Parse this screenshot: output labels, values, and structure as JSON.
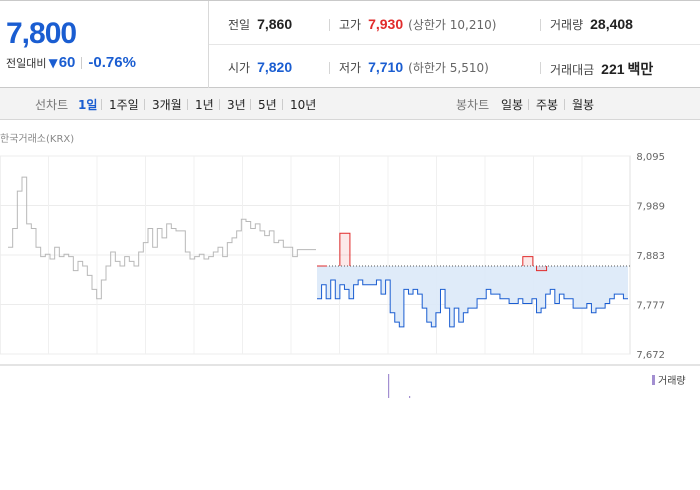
{
  "quote": {
    "price": "7,800",
    "diff_label": "전일대비",
    "diff_arrow": "▼",
    "diff_value": "60",
    "diff_rate": "-0.76%",
    "prev_close": {
      "label": "전일",
      "value": "7,860"
    },
    "high": {
      "label": "고가",
      "value": "7,930",
      "sub": "(상한가 10,210)"
    },
    "volume": {
      "label": "거래량",
      "value": "28,408"
    },
    "open": {
      "label": "시가",
      "value": "7,820"
    },
    "low": {
      "label": "저가",
      "value": "7,710",
      "sub": "(하한가 5,510)"
    },
    "amount": {
      "label": "거래대금",
      "value": "221",
      "unit": "백만"
    }
  },
  "tabs": {
    "line_label": "선차트",
    "line_tabs": [
      "1일",
      "1주일",
      "3개월",
      "1년",
      "3년",
      "5년",
      "10년"
    ],
    "active_line_tab": "1일",
    "candle_label": "봉차트",
    "candle_tabs": [
      "일봉",
      "주봉",
      "월봉"
    ]
  },
  "source": "한국거래소(KRX)",
  "volume_legend": "거래량",
  "colors": {
    "up": "#e12b2b",
    "down": "#1a5dd1",
    "fill": "#dbe9f8",
    "history": "#b8b8b8",
    "volume": "#a38fd1"
  },
  "chart_data": {
    "type": "line",
    "y_ticks": [
      "8,095",
      "7,989",
      "7,883",
      "7,777",
      "7,672"
    ],
    "ylim": [
      7672,
      8095
    ],
    "prev_close": 7860,
    "grid": true,
    "previous_day": [
      7900,
      7940,
      8020,
      8050,
      7950,
      7940,
      7900,
      7880,
      7885,
      7875,
      7900,
      7880,
      7885,
      7880,
      7850,
      7870,
      7860,
      7840,
      7810,
      7790,
      7830,
      7860,
      7890,
      7870,
      7860,
      7880,
      7870,
      7860,
      7890,
      7910,
      7940,
      7900,
      7940,
      7920,
      7950,
      7940,
      7935,
      7935,
      7890,
      7875,
      7880,
      7885,
      7875,
      7880,
      7890,
      7900,
      7880,
      7910,
      7920,
      7935,
      7960,
      7955,
      7940,
      7950,
      7935,
      7925,
      7935,
      7910,
      7915,
      7900,
      7900,
      7880,
      7895,
      7895,
      7895,
      7895,
      7895
    ],
    "today": [
      7790,
      7820,
      7790,
      7830,
      7790,
      7820,
      7810,
      7790,
      7820,
      7830,
      7820,
      7820,
      7820,
      7830,
      7800,
      7830,
      7760,
      7740,
      7730,
      7810,
      7800,
      7810,
      7800,
      7770,
      7740,
      7730,
      7760,
      7810,
      7770,
      7730,
      7770,
      7740,
      7760,
      7770,
      7770,
      7790,
      7790,
      7810,
      7800,
      7800,
      7790,
      7790,
      7780,
      7780,
      7790,
      7780,
      7780,
      7790,
      7760,
      7770,
      7800,
      7810,
      7780,
      7800,
      7790,
      7790,
      7770,
      7770,
      7770,
      7780,
      7760,
      7770,
      7770,
      7780,
      7790,
      7800,
      7800,
      7790,
      7790
    ],
    "high_marks": [
      {
        "index": 0,
        "value": 7860
      },
      {
        "index": 5,
        "value": 7930
      },
      {
        "index": 45,
        "value": 7880
      },
      {
        "index": 48,
        "value": 7850
      }
    ],
    "volume": [
      0.6,
      0.05
    ]
  }
}
